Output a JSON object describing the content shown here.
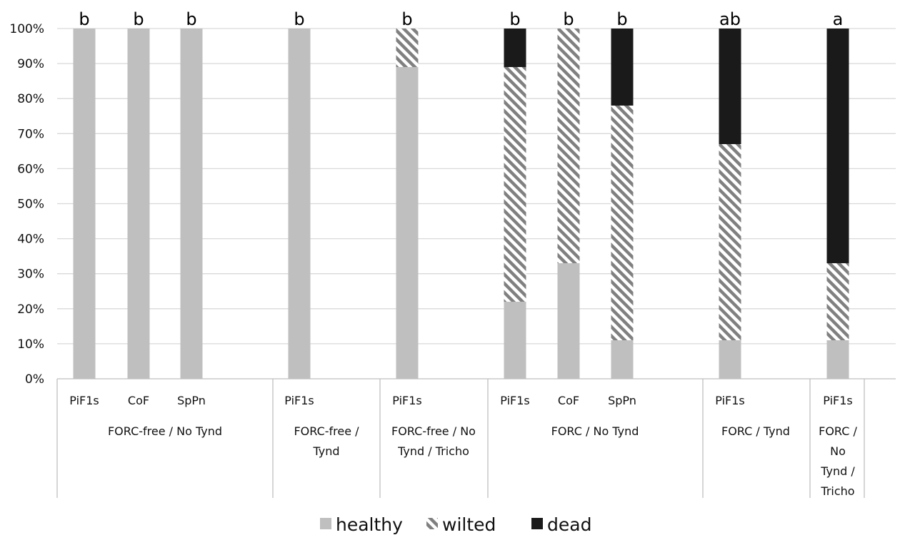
{
  "colors": {
    "healthy": "#bfbfbf",
    "wilted_hatch": "#808080",
    "dead": "#1a1a1a",
    "gridline": "#d9d9d9",
    "axis": "#bfbfbf",
    "text": "#111111"
  },
  "chart_data": {
    "type": "bar",
    "stacked": true,
    "title": "",
    "xlabel": "",
    "ylabel": "",
    "ylim": [
      0,
      100
    ],
    "yticks": [
      0,
      10,
      20,
      30,
      40,
      50,
      60,
      70,
      80,
      90,
      100
    ],
    "ytick_labels": [
      "0%",
      "10%",
      "20%",
      "30%",
      "40%",
      "50%",
      "60%",
      "70%",
      "80%",
      "90%",
      "100%"
    ],
    "grid": true,
    "legend_position": "bottom",
    "groups": [
      {
        "label": "FORC-free / No Tynd",
        "label_lines": [
          "FORC-free / No Tynd"
        ]
      },
      {
        "label": "FORC-free / Tynd",
        "label_lines": [
          "FORC-free /",
          "Tynd"
        ]
      },
      {
        "label": "FORC-free / No Tynd / Tricho",
        "label_lines": [
          "FORC-free / No",
          "Tynd / Tricho"
        ]
      },
      {
        "label": "FORC / No Tynd",
        "label_lines": [
          "FORC / No Tynd"
        ]
      },
      {
        "label": "FORC / Tynd",
        "label_lines": [
          "FORC / Tynd"
        ]
      },
      {
        "label": "FORC / No Tynd / Tricho",
        "label_lines": [
          "FORC /",
          "No",
          "Tynd /",
          "Tricho"
        ]
      }
    ],
    "bars": [
      {
        "group": 0,
        "category": "PiF1s",
        "healthy": 100,
        "wilted": 0,
        "dead": 0,
        "letter": "b"
      },
      {
        "group": 0,
        "category": "CoF",
        "healthy": 100,
        "wilted": 0,
        "dead": 0,
        "letter": "b"
      },
      {
        "group": 0,
        "category": "SpPn",
        "healthy": 100,
        "wilted": 0,
        "dead": 0,
        "letter": "b"
      },
      {
        "group": 1,
        "category": "PiF1s",
        "healthy": 100,
        "wilted": 0,
        "dead": 0,
        "letter": "b"
      },
      {
        "group": 2,
        "category": "PiF1s",
        "healthy": 89,
        "wilted": 11,
        "dead": 0,
        "letter": "b"
      },
      {
        "group": 3,
        "category": "PiF1s",
        "healthy": 22,
        "wilted": 67,
        "dead": 11,
        "letter": "b"
      },
      {
        "group": 3,
        "category": "CoF",
        "healthy": 33,
        "wilted": 67,
        "dead": 0,
        "letter": "b"
      },
      {
        "group": 3,
        "category": "SpPn",
        "healthy": 11,
        "wilted": 67,
        "dead": 22,
        "letter": "b"
      },
      {
        "group": 4,
        "category": "PiF1s",
        "healthy": 11,
        "wilted": 56,
        "dead": 33,
        "letter": "ab"
      },
      {
        "group": 5,
        "category": "PiF1s",
        "healthy": 11,
        "wilted": 22,
        "dead": 67,
        "letter": "a"
      }
    ],
    "series": [
      {
        "key": "healthy",
        "name": "healthy"
      },
      {
        "key": "wilted",
        "name": "wilted"
      },
      {
        "key": "dead",
        "name": "dead"
      }
    ]
  }
}
